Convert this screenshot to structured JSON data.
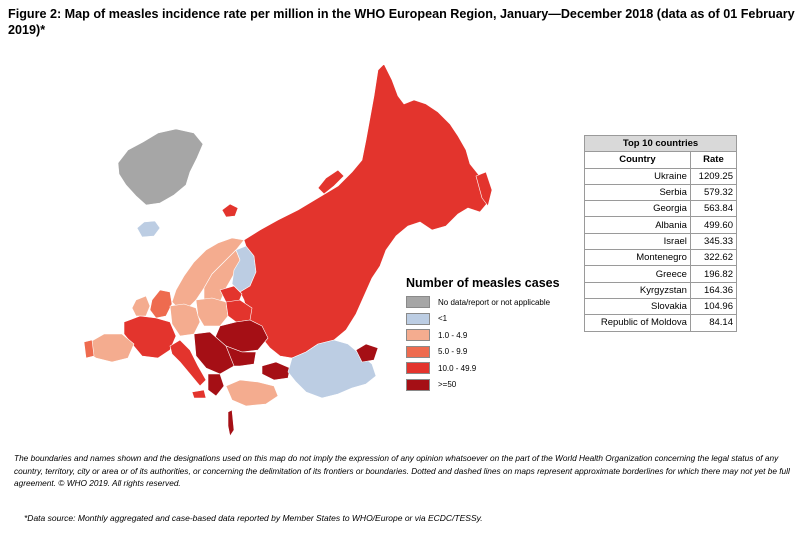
{
  "title": "Figure 2: Map of measles incidence rate per million in the WHO European Region, January—December 2018 (data as of 01 February 2019)*",
  "legend": {
    "title": "Number of measles cases",
    "items": [
      {
        "label": "No data/report or not applicable",
        "color": "#a6a6a6"
      },
      {
        "label": "<1",
        "color": "#bccde3"
      },
      {
        "label": "1.0 - 4.9",
        "color": "#f4ac8f"
      },
      {
        "label": "5.0 - 9.9",
        "color": "#ee6b4f"
      },
      {
        "label": "10.0 - 49.9",
        "color": "#e3342d"
      },
      {
        "label": ">=50",
        "color": "#a50f15"
      }
    ]
  },
  "top10": {
    "caption": "Top 10 countries",
    "col_country": "Country",
    "col_rate": "Rate",
    "rows": [
      {
        "country": "Ukraine",
        "rate": "1209.25"
      },
      {
        "country": "Serbia",
        "rate": "579.32"
      },
      {
        "country": "Georgia",
        "rate": "563.84"
      },
      {
        "country": "Albania",
        "rate": "499.60"
      },
      {
        "country": "Israel",
        "rate": "345.33"
      },
      {
        "country": "Montenegro",
        "rate": "322.62"
      },
      {
        "country": "Greece",
        "rate": "196.82"
      },
      {
        "country": "Kyrgyzstan",
        "rate": "164.36"
      },
      {
        "country": "Slovakia",
        "rate": "104.96"
      },
      {
        "country": "Republic of Moldova",
        "rate": "84.14"
      }
    ]
  },
  "disclaimer": "The boundaries and names shown and the designations used on this map do not imply the expression of any opinion whatsoever on the part of the World Health Organization concerning the legal status of any country, territory, city or area or of its authorities, or concerning the delimitation of its frontiers or boundaries. Dotted and dashed lines on maps represent approximate borderlines for which there may not yet be full agreement. © WHO 2019. All rights reserved.",
  "source": "*Data source: Monthly aggregated and case-based data reported by Member States to WHO/Europe or via ECDC/TESSy."
}
